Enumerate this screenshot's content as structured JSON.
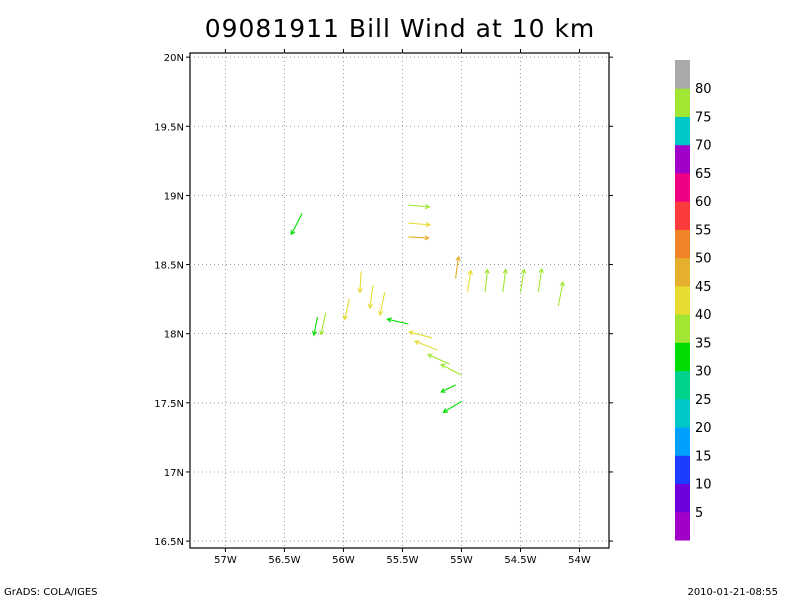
{
  "title": "09081911 Bill Wind at 10 km",
  "footer": {
    "left": "GrADS: COLA/IGES",
    "right": "2010-01-21-08:55"
  },
  "chart_data": {
    "type": "vector",
    "title": "09081911 Bill Wind at 10 km",
    "xlabel": "",
    "ylabel": "",
    "xlim": [
      -57.3,
      -53.75
    ],
    "ylim": [
      16.45,
      20.03
    ],
    "grid": true,
    "x_ticks": [
      {
        "v": -57,
        "label": "57W"
      },
      {
        "v": -56.5,
        "label": "56.5W"
      },
      {
        "v": -56,
        "label": "56W"
      },
      {
        "v": -55.5,
        "label": "55.5W"
      },
      {
        "v": -55,
        "label": "55W"
      },
      {
        "v": -54.5,
        "label": "54.5W"
      },
      {
        "v": -54,
        "label": "54W"
      }
    ],
    "y_ticks": [
      {
        "v": 16.5,
        "label": "16.5N"
      },
      {
        "v": 17,
        "label": "17N"
      },
      {
        "v": 17.5,
        "label": "17.5N"
      },
      {
        "v": 18,
        "label": "18N"
      },
      {
        "v": 18.5,
        "label": "18.5N"
      },
      {
        "v": 19,
        "label": "19N"
      },
      {
        "v": 19.5,
        "label": "19.5N"
      },
      {
        "v": 20,
        "label": "20N"
      }
    ],
    "colorbar": {
      "labels": [
        "5",
        "10",
        "15",
        "20",
        "25",
        "30",
        "35",
        "40",
        "45",
        "50",
        "55",
        "60",
        "65",
        "70",
        "75",
        "80"
      ],
      "colors": [
        "#a000c8",
        "#6e00dc",
        "#1e3cff",
        "#00a0ff",
        "#00c8c8",
        "#00d28c",
        "#00dc00",
        "#a0e632",
        "#e6dc32",
        "#e6af2d",
        "#f08228",
        "#fa3c3c",
        "#f00082",
        "#a000c8",
        "#00c8c8",
        "#a0e632",
        "#aaaaaa"
      ]
    },
    "vectors": [
      {
        "lon": -55.45,
        "lat": 18.93,
        "u": 3.5,
        "v": -0.3,
        "speed": 35
      },
      {
        "lon": -55.45,
        "lat": 18.8,
        "u": 3.6,
        "v": -0.3,
        "speed": 41
      },
      {
        "lon": -55.45,
        "lat": 18.7,
        "u": 3.4,
        "v": -0.2,
        "speed": 46
      },
      {
        "lon": -56.35,
        "lat": 18.87,
        "u": -1.8,
        "v": -3.5,
        "speed": 33
      },
      {
        "lon": -55.85,
        "lat": 18.45,
        "u": -0.2,
        "v": -3.5,
        "speed": 41
      },
      {
        "lon": -55.75,
        "lat": 18.35,
        "u": -0.5,
        "v": -3.8,
        "speed": 43
      },
      {
        "lon": -55.65,
        "lat": 18.3,
        "u": -0.8,
        "v": -3.8,
        "speed": 44
      },
      {
        "lon": -55.95,
        "lat": 18.25,
        "u": -0.8,
        "v": -3.4,
        "speed": 40
      },
      {
        "lon": -56.22,
        "lat": 18.12,
        "u": -0.6,
        "v": -3.0,
        "speed": 33
      },
      {
        "lon": -56.15,
        "lat": 18.15,
        "u": -0.8,
        "v": -3.6,
        "speed": 35
      },
      {
        "lon": -55.05,
        "lat": 18.4,
        "u": 0.5,
        "v": 3.6,
        "speed": 45
      },
      {
        "lon": -54.95,
        "lat": 18.3,
        "u": 0.6,
        "v": 3.6,
        "speed": 40
      },
      {
        "lon": -54.8,
        "lat": 18.3,
        "u": 0.4,
        "v": 3.8,
        "speed": 39
      },
      {
        "lon": -54.65,
        "lat": 18.3,
        "u": 0.5,
        "v": 3.8,
        "speed": 38
      },
      {
        "lon": -54.5,
        "lat": 18.3,
        "u": 0.6,
        "v": 3.8,
        "speed": 37
      },
      {
        "lon": -54.35,
        "lat": 18.3,
        "u": 0.6,
        "v": 3.9,
        "speed": 36
      },
      {
        "lon": -54.18,
        "lat": 18.2,
        "u": 0.8,
        "v": 4.0,
        "speed": 35
      },
      {
        "lon": -55.45,
        "lat": 18.07,
        "u": -3.5,
        "v": 0.8,
        "speed": 30
      },
      {
        "lon": -55.25,
        "lat": 17.97,
        "u": -3.8,
        "v": 1.0,
        "speed": 43
      },
      {
        "lon": -55.2,
        "lat": 17.88,
        "u": -3.8,
        "v": 1.5,
        "speed": 41
      },
      {
        "lon": -55.1,
        "lat": 17.78,
        "u": -3.6,
        "v": 1.6,
        "speed": 38
      },
      {
        "lon": -55.0,
        "lat": 17.7,
        "u": -3.4,
        "v": 1.8,
        "speed": 36
      },
      {
        "lon": -55.05,
        "lat": 17.63,
        "u": -2.4,
        "v": -1.2,
        "speed": 34
      },
      {
        "lon": -55.0,
        "lat": 17.51,
        "u": -3.0,
        "v": -1.8,
        "speed": 33
      }
    ]
  }
}
